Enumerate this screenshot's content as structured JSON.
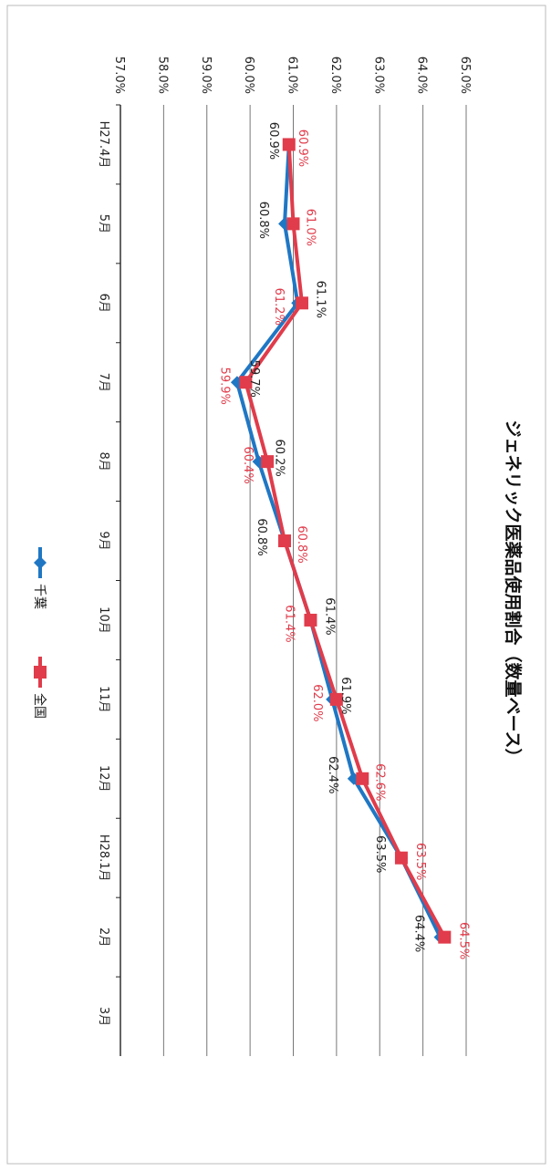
{
  "chart_data": {
    "type": "line",
    "title": "ジェネリック医薬品使用割合（数量ベース）",
    "categories": [
      "H27.4月",
      "5月",
      "6月",
      "7月",
      "8月",
      "9月",
      "10月",
      "11月",
      "12月",
      "H28.1月",
      "2月",
      "3月"
    ],
    "ylim": [
      57.0,
      65.0
    ],
    "yticks": [
      "57.0%",
      "58.0%",
      "59.0%",
      "60.0%",
      "61.0%",
      "62.0%",
      "63.0%",
      "64.0%",
      "65.0%"
    ],
    "grid": true,
    "legend_position": "bottom",
    "orientation": "rotated-90-clockwise",
    "series": [
      {
        "name": "千葉",
        "color": "#1f77c4",
        "marker": "diamond",
        "values": [
          60.9,
          60.8,
          61.1,
          59.7,
          60.2,
          60.8,
          61.4,
          61.9,
          62.4,
          63.5,
          64.4,
          null
        ],
        "labels": [
          "60.9%",
          "60.8%",
          "61.1%",
          "59.7%",
          "60.2%",
          "60.8%",
          "61.4%",
          "61.9%",
          "62.4%",
          "63.5%",
          "64.4%",
          ""
        ]
      },
      {
        "name": "全国",
        "color": "#e03c4b",
        "marker": "square",
        "values": [
          60.9,
          61.0,
          61.2,
          59.9,
          60.4,
          60.8,
          61.4,
          62.0,
          62.6,
          63.5,
          64.5,
          null
        ],
        "labels": [
          "60.9%",
          "61.0%",
          "61.2%",
          "59.9%",
          "60.4%",
          "60.8%",
          "61.4%",
          "62.0%",
          "62.6%",
          "63.5%",
          "64.5%",
          ""
        ]
      }
    ]
  }
}
